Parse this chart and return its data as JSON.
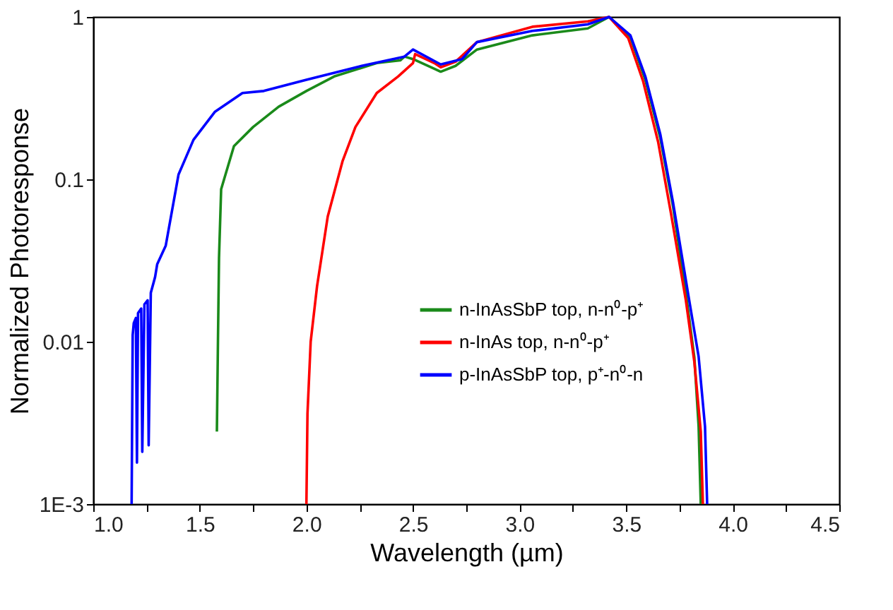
{
  "chart_data": {
    "type": "line",
    "xlabel": "Wavelength (µm)",
    "ylabel": "Normalized Photoresponse",
    "log": "y",
    "xlim": [
      1.0,
      4.5
    ],
    "ylim": [
      0.001,
      1
    ],
    "xticks": [
      {
        "value": 1.0,
        "label": "1.0"
      },
      {
        "value": 1.25,
        "label": null
      },
      {
        "value": 1.5,
        "label": "1.5"
      },
      {
        "value": 1.75,
        "label": null
      },
      {
        "value": 2.0,
        "label": "2.0"
      },
      {
        "value": 2.25,
        "label": null
      },
      {
        "value": 2.5,
        "label": "2.5"
      },
      {
        "value": 2.75,
        "label": null
      },
      {
        "value": 3.0,
        "label": "3.0"
      },
      {
        "value": 3.25,
        "label": null
      },
      {
        "value": 3.5,
        "label": "3.5"
      },
      {
        "value": 3.75,
        "label": null
      },
      {
        "value": 4.0,
        "label": "4.0"
      },
      {
        "value": 4.25,
        "label": null
      },
      {
        "value": 4.5,
        "label": "4.5"
      }
    ],
    "yticks": [
      {
        "value": 0.001,
        "label": "1E-3"
      },
      0.01,
      0.1,
      1
    ],
    "grid": false,
    "legend": "bottom",
    "marker": "none",
    "line_style": "solid",
    "series": [
      {
        "name": "n-InAsSbP top, n-n⁰-p⁺",
        "color": "#1a8a1a",
        "x": [
          1.58,
          1.585,
          1.59,
          1.6,
          1.66,
          1.75,
          1.87,
          2.0,
          2.13,
          2.33,
          2.44,
          2.46,
          2.5,
          2.6,
          2.63,
          2.7,
          2.8,
          3.06,
          3.32,
          3.42,
          3.52,
          3.59,
          3.66,
          3.72,
          3.78,
          3.82,
          3.84,
          3.85
        ],
        "values": [
          0.0028,
          0.01,
          0.033,
          0.087,
          0.16,
          0.21,
          0.28,
          0.35,
          0.43,
          0.52,
          0.54,
          0.57,
          0.55,
          0.48,
          0.46,
          0.5,
          0.63,
          0.77,
          0.85,
          1.0,
          0.75,
          0.41,
          0.18,
          0.068,
          0.02,
          0.008,
          0.003,
          0.001
        ]
      },
      {
        "name": "n-InAs top, n-n⁰-p⁺",
        "color": "#ff0000",
        "x": [
          2.0,
          2.005,
          2.02,
          2.05,
          2.1,
          2.17,
          2.23,
          2.33,
          2.43,
          2.5,
          2.51,
          2.6,
          2.63,
          2.7,
          2.8,
          3.06,
          3.32,
          3.42,
          3.51,
          3.58,
          3.65,
          3.71,
          3.78,
          3.82,
          3.85,
          3.86
        ],
        "values": [
          0.001,
          0.0036,
          0.01,
          0.022,
          0.059,
          0.13,
          0.21,
          0.34,
          0.43,
          0.52,
          0.59,
          0.52,
          0.49,
          0.53,
          0.7,
          0.87,
          0.94,
          1.0,
          0.74,
          0.4,
          0.17,
          0.062,
          0.018,
          0.0075,
          0.0028,
          0.001
        ]
      },
      {
        "name": "p-InAsSbP top, p⁺-n⁰-n",
        "color": "#0000ff",
        "x": [
          1.18,
          1.185,
          1.19,
          1.2,
          1.205,
          1.21,
          1.225,
          1.23,
          1.24,
          1.255,
          1.26,
          1.27,
          1.29,
          1.3,
          1.34,
          1.4,
          1.47,
          1.57,
          1.7,
          1.8,
          2.0,
          2.26,
          2.46,
          2.5,
          2.63,
          2.73,
          2.8,
          3.06,
          3.32,
          3.42,
          3.52,
          3.59,
          3.66,
          3.72,
          3.79,
          3.84,
          3.87,
          3.88
        ],
        "values": [
          0.001,
          0.011,
          0.013,
          0.014,
          0.0018,
          0.015,
          0.016,
          0.0021,
          0.017,
          0.018,
          0.0023,
          0.02,
          0.025,
          0.03,
          0.039,
          0.107,
          0.175,
          0.26,
          0.34,
          0.35,
          0.41,
          0.5,
          0.57,
          0.63,
          0.51,
          0.55,
          0.7,
          0.82,
          0.9,
          1.0,
          0.77,
          0.43,
          0.19,
          0.072,
          0.02,
          0.0081,
          0.003,
          0.001
        ]
      }
    ]
  }
}
